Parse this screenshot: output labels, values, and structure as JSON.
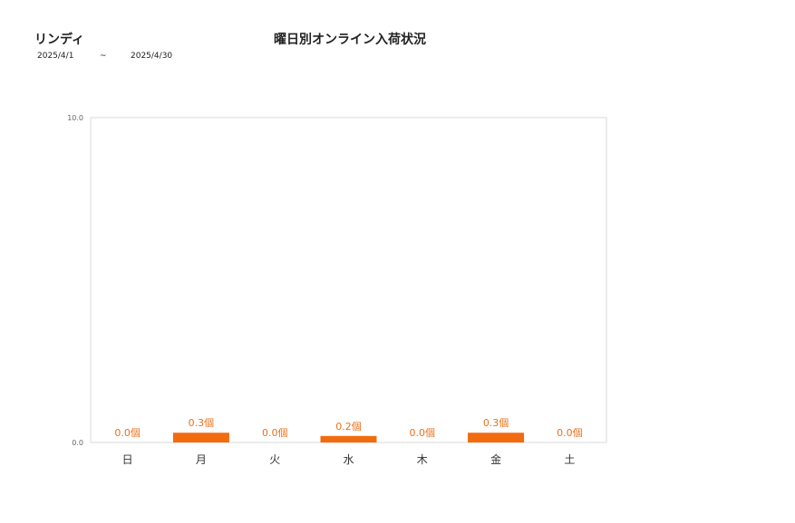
{
  "header": {
    "brand": "リンディ",
    "title": "曜日別オンライン入荷状況",
    "date_from": "2025/4/1",
    "tilde": "~",
    "date_to": "2025/4/30"
  },
  "colors": {
    "bar": "#f26b0f",
    "label": "#e8711c",
    "axis": "#cccccc",
    "tick": "#666666"
  },
  "chart_data": {
    "type": "bar",
    "title": "曜日別オンライン入荷状況",
    "categories": [
      "日",
      "月",
      "火",
      "水",
      "木",
      "金",
      "土"
    ],
    "values": [
      0.0,
      0.3,
      0.0,
      0.2,
      0.0,
      0.3,
      0.0
    ],
    "data_labels": [
      "0.0個",
      "0.3個",
      "0.0個",
      "0.2個",
      "0.0個",
      "0.3個",
      "0.0個"
    ],
    "ylim": [
      0,
      10
    ],
    "y_ticks": [
      "0.0",
      "10.0"
    ],
    "grid": false,
    "legend": "none"
  }
}
